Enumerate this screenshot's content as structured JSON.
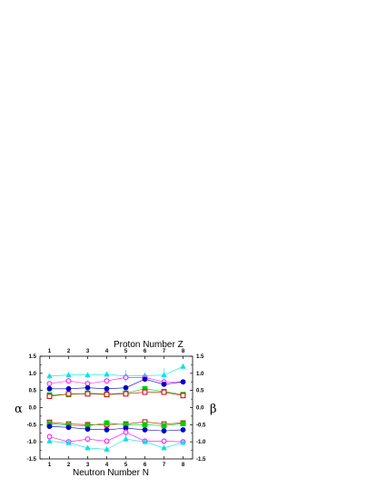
{
  "chart_data": {
    "type": "scatter",
    "xlabel_bottom": "Neutron Number N",
    "xlabel_top": "Proton Number Z",
    "ylabel_left": "α",
    "ylabel_right": "β",
    "x": [
      1,
      2,
      3,
      4,
      5,
      6,
      7,
      8
    ],
    "xlim": [
      0.5,
      8.5
    ],
    "ylim": [
      -1.5,
      1.5
    ],
    "yticks": [
      "1.5",
      "1.0",
      "0.5",
      "0.0",
      "-0.5",
      "-1.0",
      "-1.5"
    ],
    "right_yticks": [
      "1.5",
      "1.0",
      "0.5",
      "0.0",
      "-0.5",
      "-1.0",
      "-1.5"
    ],
    "xticks": [
      "1",
      "2",
      "3",
      "4",
      "5",
      "6",
      "7",
      "8"
    ],
    "grid": false,
    "series": [
      {
        "color": "#00e5e5",
        "marker": "triangle",
        "values": [
          0.92,
          0.95,
          0.95,
          0.97,
          0.92,
          0.93,
          0.95,
          1.2
        ],
        "err": [
          0.03,
          0.03,
          0.03,
          0.03,
          0.18,
          0.1,
          0.2,
          0.05
        ]
      },
      {
        "color": "#ff00ff",
        "marker": "circle-open",
        "values": [
          0.7,
          0.78,
          0.7,
          0.78,
          0.88,
          0.88,
          0.75,
          0.75
        ],
        "err": [
          0.03,
          0.03,
          0.03,
          0.03,
          0.05,
          0.07,
          0.05,
          0.05
        ]
      },
      {
        "color": "#0000cc",
        "marker": "circle",
        "values": [
          0.55,
          0.55,
          0.58,
          0.55,
          0.58,
          0.83,
          0.68,
          0.75
        ],
        "err": [
          0.03,
          0.03,
          0.03,
          0.03,
          0.03,
          0.08,
          0.06,
          0.05
        ]
      },
      {
        "color": "#00cc00",
        "marker": "square",
        "values": [
          0.37,
          0.38,
          0.42,
          0.4,
          0.42,
          0.55,
          0.47,
          0.38
        ],
        "err": [
          0.02,
          0.02,
          0.02,
          0.02,
          0.03,
          0.04,
          0.04,
          0.03
        ]
      },
      {
        "color": "#cc0000",
        "marker": "square-open",
        "values": [
          0.33,
          0.4,
          0.4,
          0.38,
          0.4,
          0.45,
          0.45,
          0.35
        ],
        "err": [
          0.02,
          0.02,
          0.02,
          0.02,
          0.03,
          0.04,
          0.03,
          0.03
        ]
      },
      {
        "color": "#cc0000",
        "marker": "square-open",
        "values": [
          -0.43,
          -0.48,
          -0.5,
          -0.5,
          -0.48,
          -0.42,
          -0.48,
          -0.45
        ],
        "err": [
          0.02,
          0.02,
          0.02,
          0.03,
          0.03,
          0.05,
          0.04,
          0.03
        ]
      },
      {
        "color": "#00cc00",
        "marker": "square",
        "values": [
          -0.47,
          -0.52,
          -0.53,
          -0.45,
          -0.5,
          -0.5,
          -0.53,
          -0.47
        ],
        "err": [
          0.02,
          0.02,
          0.02,
          0.03,
          0.03,
          0.04,
          0.04,
          0.03
        ]
      },
      {
        "color": "#0000cc",
        "marker": "circle",
        "values": [
          -0.55,
          -0.58,
          -0.63,
          -0.65,
          -0.6,
          -0.65,
          -0.68,
          -0.65
        ],
        "err": [
          0.03,
          0.03,
          0.03,
          0.03,
          0.04,
          0.05,
          0.05,
          0.04
        ]
      },
      {
        "color": "#ff00ff",
        "marker": "circle-open",
        "values": [
          -0.85,
          -1.0,
          -0.92,
          -0.98,
          -0.72,
          -0.98,
          -0.98,
          -1.0
        ],
        "err": [
          0.03,
          0.03,
          0.03,
          0.04,
          0.1,
          0.08,
          0.05,
          0.05
        ]
      },
      {
        "color": "#00e5e5",
        "marker": "triangle",
        "values": [
          -0.98,
          -1.03,
          -1.18,
          -1.22,
          -0.92,
          -1.0,
          -1.18,
          -1.02
        ],
        "err": [
          0.03,
          0.03,
          0.03,
          0.05,
          0.1,
          0.08,
          0.05,
          0.08
        ]
      }
    ]
  }
}
